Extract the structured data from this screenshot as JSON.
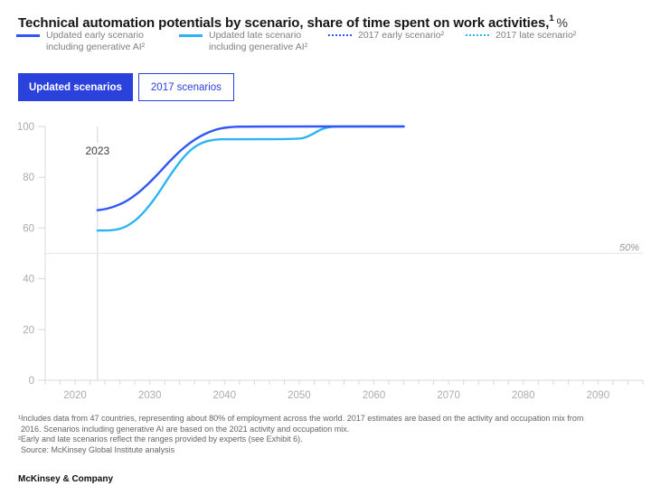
{
  "header": {
    "title": "Technical automation potentials by scenario, share of time spent on work activities,",
    "title_superscript": "1",
    "title_unit": "%"
  },
  "legend": {
    "items": [
      {
        "line1": "Updated early scenario",
        "line2": "including generative AI²",
        "style": "solid",
        "color_key": "early"
      },
      {
        "line1": "Updated late scenario",
        "line2": "including generative AI²",
        "style": "solid",
        "color_key": "late"
      },
      {
        "line1": "2017 early scenario²",
        "line2": "",
        "style": "dotted",
        "color_key": "early"
      },
      {
        "line1": "2017 late scenario²",
        "line2": "",
        "style": "dotted",
        "color_key": "late"
      }
    ]
  },
  "toggle": {
    "updated_label": "Updated scenarios",
    "y2017_label": "2017 scenarios"
  },
  "chart_data": {
    "type": "line",
    "title": "Technical automation potentials by scenario, share of time spent on work activities, %",
    "x_range": [
      2016,
      2096
    ],
    "y_range": [
      0,
      100
    ],
    "x_ticks": [
      2020,
      2030,
      2040,
      2050,
      2060,
      2070,
      2080,
      2090
    ],
    "y_ticks": [
      0,
      20,
      40,
      60,
      80,
      100
    ],
    "minor_tick_step_years": 2,
    "grid": false,
    "legend_position": "top",
    "reference_line": {
      "value": 50,
      "label": "50%"
    },
    "marker_line": {
      "year": 2023,
      "label": "2023"
    },
    "series": [
      {
        "name": "Updated early scenario including generative AI",
        "color_key": "early",
        "points": [
          [
            2023,
            67
          ],
          [
            2024,
            67.4
          ],
          [
            2025,
            68.2
          ],
          [
            2026,
            69.3
          ],
          [
            2027,
            70.8
          ],
          [
            2028,
            72.8
          ],
          [
            2029,
            75.2
          ],
          [
            2030,
            78
          ],
          [
            2031,
            81
          ],
          [
            2032,
            84.2
          ],
          [
            2033,
            87.3
          ],
          [
            2034,
            90.2
          ],
          [
            2035,
            92.7
          ],
          [
            2036,
            94.8
          ],
          [
            2037,
            96.5
          ],
          [
            2038,
            97.9
          ],
          [
            2039,
            98.9
          ],
          [
            2040,
            99.5
          ],
          [
            2041,
            99.8
          ],
          [
            2042,
            100
          ],
          [
            2064,
            100
          ]
        ]
      },
      {
        "name": "Updated late scenario including generative AI",
        "color_key": "late",
        "points": [
          [
            2023,
            59
          ],
          [
            2024,
            59
          ],
          [
            2025,
            59.1
          ],
          [
            2026,
            59.6
          ],
          [
            2027,
            60.8
          ],
          [
            2028,
            62.8
          ],
          [
            2029,
            65.5
          ],
          [
            2030,
            69
          ],
          [
            2031,
            73
          ],
          [
            2032,
            77.5
          ],
          [
            2033,
            82
          ],
          [
            2034,
            86
          ],
          [
            2035,
            89.5
          ],
          [
            2036,
            92
          ],
          [
            2037,
            93.6
          ],
          [
            2038,
            94.5
          ],
          [
            2039,
            94.9
          ],
          [
            2040,
            95
          ],
          [
            2050,
            95
          ],
          [
            2051,
            95.8
          ],
          [
            2052,
            97.3
          ],
          [
            2053,
            99
          ],
          [
            2054,
            99.8
          ],
          [
            2055,
            100
          ],
          [
            2064,
            100
          ]
        ]
      }
    ]
  },
  "footnotes": {
    "line1": "¹Includes data from 47 countries, representing about 80% of employment across the world. 2017 estimates are based on the activity and occupation mix from",
    "line2": "2016. Scenarios including generative AI are based on the 2021 activity and occupation mix.",
    "line3": "²Early and late scenarios reflect the ranges provided by experts (see Exhibit 6).",
    "line4": "Source: McKinsey Global Institute analysis"
  },
  "footer": {
    "brand": "McKinsey & Company"
  },
  "colors": {
    "early": "#3156f5",
    "late": "#2eb4f5",
    "button_blue": "#2b41dc",
    "axis": "#d9d9d9",
    "axis_label": "#acacac",
    "reference": "#e8e8e8",
    "marker_line": "#d4d4d4",
    "label_dark": "#3c3c3c",
    "reference_label": "#999999"
  }
}
